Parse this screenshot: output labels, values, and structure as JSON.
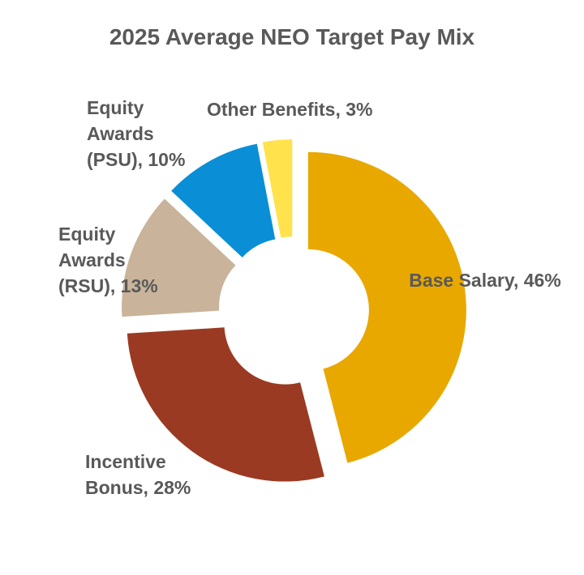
{
  "chart_data": {
    "type": "donut",
    "title": "2025 Average NEO Target Pay Mix",
    "labels": [
      "Base Salary, 46%",
      "Incentive Bonus, 28%",
      "Equity Awards (RSU), 13%",
      "Equity Awards (PSU), 10%",
      "Other Benefits, 3%"
    ],
    "values": [
      46,
      28,
      13,
      10,
      3
    ],
    "colors": [
      "#e8a800",
      "#9b3a22",
      "#c9b49b",
      "#0a8fd6",
      "#ffe24c"
    ]
  }
}
